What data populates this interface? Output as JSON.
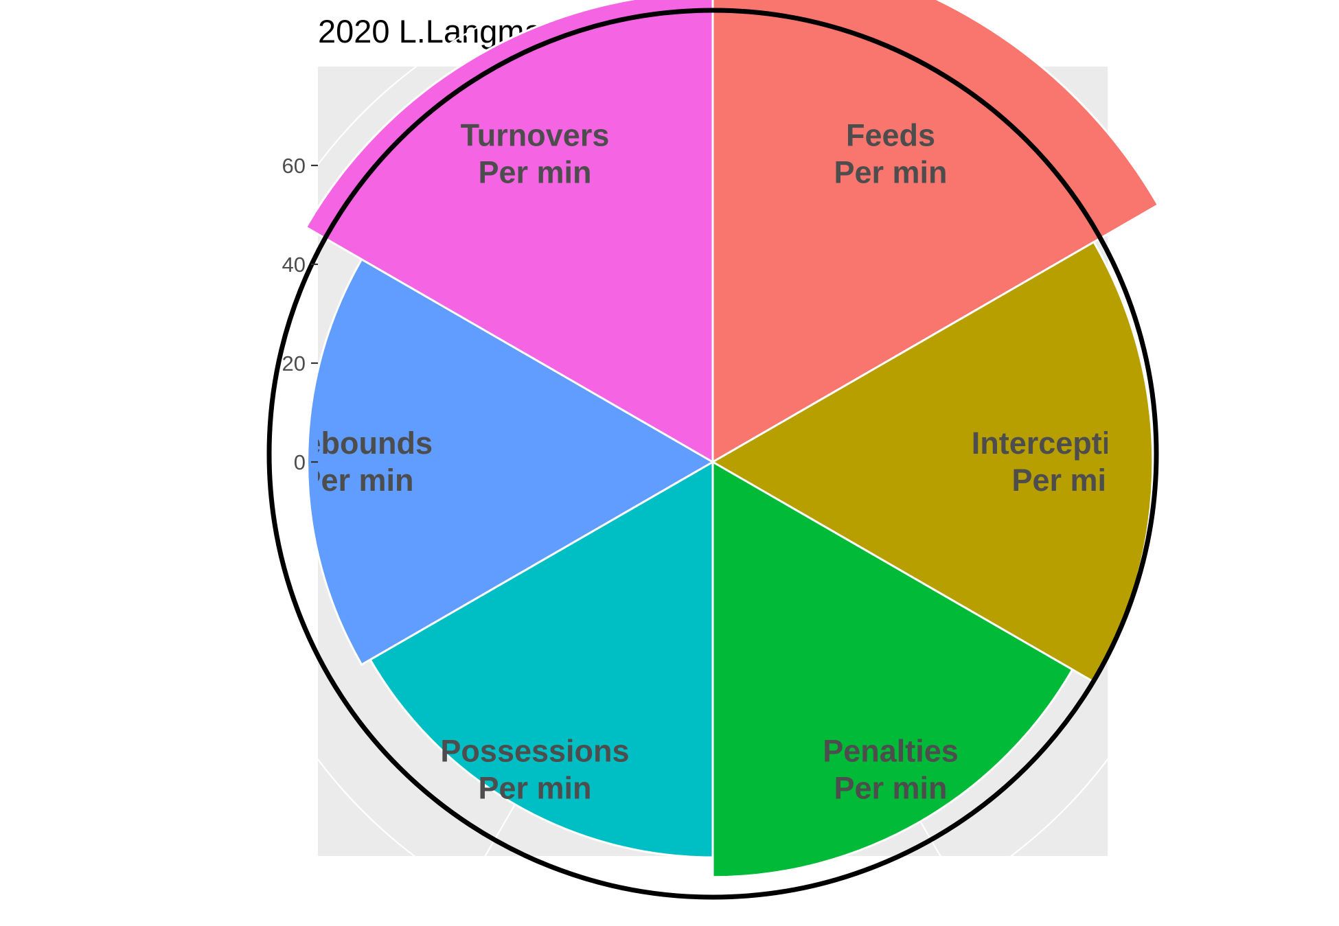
{
  "chart_data": {
    "type": "polar-bar",
    "title": "2020 L.Langman",
    "r_ticks": [
      0,
      20,
      40,
      60
    ],
    "r_tick_labels": [
      "0",
      "20",
      "40",
      "60"
    ],
    "grid": true,
    "legend": "none",
    "reference_circle": 50,
    "categories": [
      {
        "line1": "Feeds",
        "line2": "Per min",
        "value": 64,
        "color": "#F8766D"
      },
      {
        "line1": "Interceptions",
        "line2": "Per min",
        "value": 49,
        "color": "#B79F00"
      },
      {
        "line1": "Penalties",
        "line2": "Per min",
        "value": 44,
        "color": "#00BA38"
      },
      {
        "line1": "Possessions",
        "line2": "Per min",
        "value": 40,
        "color": "#00BFC4"
      },
      {
        "line1": "Rebounds",
        "line2": "Per min",
        "value": 42,
        "color": "#619CFF"
      },
      {
        "line1": "Turnovers",
        "line2": "Per min",
        "value": 55,
        "color": "#F564E3"
      }
    ]
  }
}
